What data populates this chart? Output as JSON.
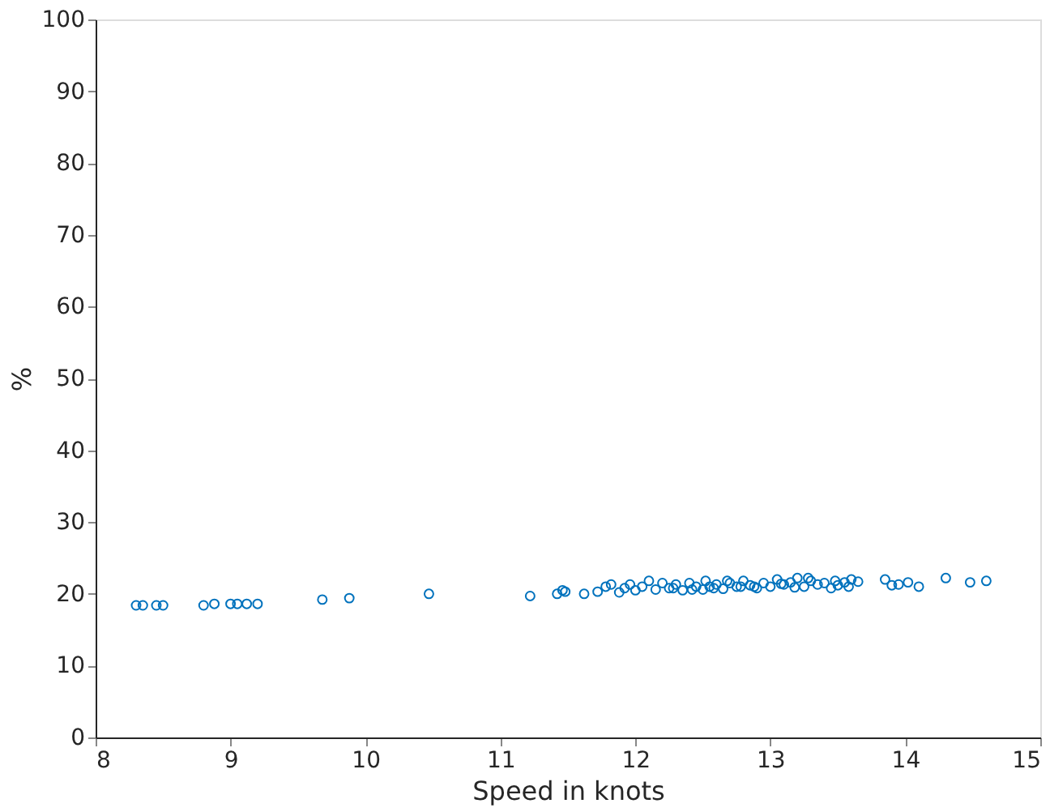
{
  "chart_data": {
    "type": "scatter",
    "xlabel": "Speed in knots",
    "ylabel": "%",
    "xlim": [
      8,
      15
    ],
    "ylim": [
      0,
      100
    ],
    "xticks": [
      8,
      9,
      10,
      11,
      12,
      13,
      14,
      15
    ],
    "yticks": [
      0,
      10,
      20,
      30,
      40,
      50,
      60,
      70,
      80,
      90,
      100
    ],
    "grid": false,
    "marker": "circle",
    "series": [
      {
        "color": "#0072bd",
        "x": [
          8.3,
          8.35,
          8.45,
          8.5,
          8.8,
          8.88,
          9.0,
          9.05,
          9.12,
          9.2,
          9.68,
          9.88,
          10.47,
          11.22,
          11.42,
          11.46,
          11.48,
          11.62,
          11.72,
          11.78,
          11.82,
          11.88,
          11.92,
          11.96,
          12.0,
          12.05,
          12.1,
          12.15,
          12.2,
          12.25,
          12.3,
          12.35,
          12.4,
          12.45,
          12.5,
          12.52,
          12.55,
          12.6,
          12.65,
          12.7,
          12.75,
          12.8,
          12.85,
          12.9,
          12.95,
          13.0,
          13.05,
          13.1,
          13.15,
          13.2,
          13.25,
          13.3,
          13.35,
          13.4,
          13.45,
          13.5,
          13.55,
          13.6,
          13.65,
          13.85,
          13.9,
          13.95,
          14.02,
          14.1,
          14.3,
          14.48,
          14.6,
          12.42,
          12.58,
          12.68,
          12.88,
          13.08,
          13.28,
          13.48,
          12.28,
          12.78,
          13.18,
          13.58
        ],
        "values": [
          18.4,
          18.4,
          18.4,
          18.4,
          18.4,
          18.6,
          18.6,
          18.6,
          18.6,
          18.6,
          19.2,
          19.4,
          20.0,
          19.7,
          20.0,
          20.5,
          20.3,
          20.0,
          20.3,
          21.0,
          21.3,
          20.2,
          20.8,
          21.3,
          20.5,
          21.0,
          21.8,
          20.6,
          21.5,
          20.8,
          21.3,
          20.5,
          21.5,
          21.0,
          20.6,
          21.8,
          21.0,
          21.3,
          20.7,
          21.5,
          21.0,
          21.8,
          21.2,
          20.8,
          21.5,
          21.0,
          22.0,
          21.3,
          21.6,
          22.2,
          21.0,
          21.8,
          21.3,
          21.5,
          20.8,
          21.2,
          21.6,
          22.0,
          21.7,
          22.0,
          21.2,
          21.3,
          21.6,
          21.0,
          22.2,
          21.6,
          21.8,
          20.6,
          20.8,
          21.8,
          21.0,
          21.4,
          22.2,
          21.8,
          20.8,
          21.0,
          20.9,
          21.0
        ]
      }
    ]
  }
}
